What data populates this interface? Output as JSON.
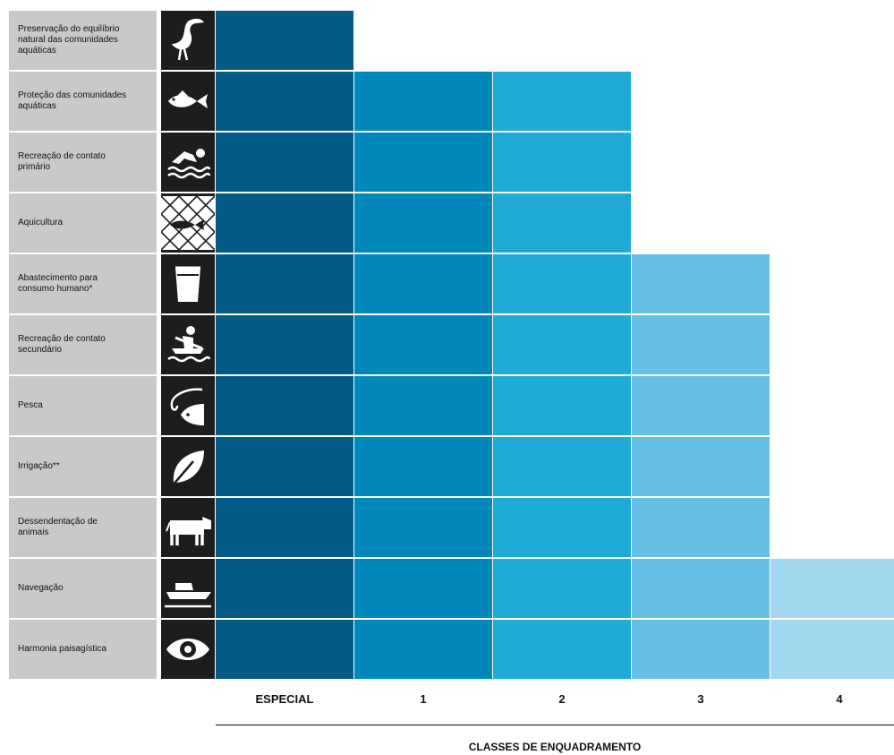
{
  "chart_data": {
    "type": "heatmap",
    "title": "",
    "xlabel": "CLASSES DE ENQUADRAMENTO",
    "classes": [
      "ESPECIAL",
      "1",
      "2",
      "3",
      "4"
    ],
    "class_colors": [
      "#035a86",
      "#0088bb",
      "#1faad7",
      "#66bfe4",
      "#a3d8f1"
    ],
    "uses": [
      {
        "label": "Preservação do equilíbrio\nnatural das comunidades\naquáticas",
        "icon": "heron-icon",
        "classes": [
          "ESPECIAL"
        ]
      },
      {
        "label": "Proteção das comunidades\naquáticas",
        "icon": "fish-icon",
        "classes": [
          "ESPECIAL",
          "1",
          "2"
        ]
      },
      {
        "label": "Recreação de contato\nprimário",
        "icon": "swimmer-icon",
        "classes": [
          "ESPECIAL",
          "1",
          "2"
        ]
      },
      {
        "label": "Aquicultura",
        "icon": "fish-net-icon",
        "classes": [
          "ESPECIAL",
          "1",
          "2"
        ]
      },
      {
        "label": "Abastecimento para\nconsumo humano*",
        "icon": "bucket-icon",
        "classes": [
          "ESPECIAL",
          "1",
          "2",
          "3"
        ]
      },
      {
        "label": "Recreação de contato\nsecundário",
        "icon": "rower-icon",
        "classes": [
          "ESPECIAL",
          "1",
          "2",
          "3"
        ]
      },
      {
        "label": "Pesca",
        "icon": "fishing-hook-icon",
        "classes": [
          "ESPECIAL",
          "1",
          "2",
          "3"
        ]
      },
      {
        "label": "Irrigação**",
        "icon": "leaf-icon",
        "classes": [
          "ESPECIAL",
          "1",
          "2",
          "3"
        ]
      },
      {
        "label": "Dessendentação de\nanimais",
        "icon": "cow-icon",
        "classes": [
          "ESPECIAL",
          "1",
          "2",
          "3"
        ]
      },
      {
        "label": "Navegação",
        "icon": "boat-icon",
        "classes": [
          "ESPECIAL",
          "1",
          "2",
          "3",
          "4"
        ]
      },
      {
        "label": "Harmonia paisagística",
        "icon": "eye-icon",
        "classes": [
          "ESPECIAL",
          "1",
          "2",
          "3",
          "4"
        ]
      }
    ]
  }
}
